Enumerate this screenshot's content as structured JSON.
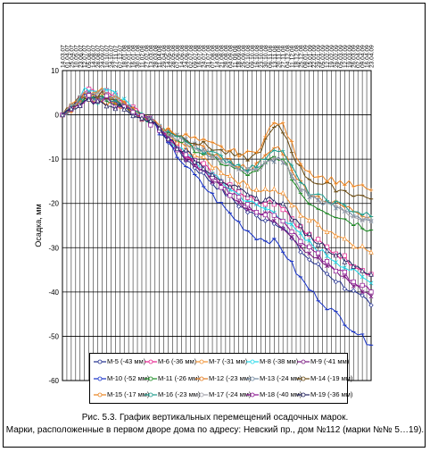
{
  "chart_data": {
    "type": "line",
    "ylabel": "Осадка, мм",
    "ylim": [
      -60,
      10
    ],
    "yticks": [
      10,
      0,
      -10,
      -20,
      -30,
      -40,
      -50,
      -60
    ],
    "x": [
      "14.03.07",
      "01.04.07",
      "25.04.07",
      "10.05.07",
      "23.06.07",
      "12.07.07",
      "05.08.07",
      "14.08.07",
      "28.08.07",
      "24.09.07",
      "10.10.07",
      "24.10.07",
      "27.11.07",
      "07.12.07",
      "18.01.08",
      "22.01.08",
      "16.01.08",
      "30.01.08",
      "11.02.08",
      "27.02.08",
      "13.03.08",
      "28.03.08",
      "11.04.08",
      "29.04.08",
      "14.05.08",
      "28.05.08",
      "07.06.08",
      "14.06.08",
      "24.06.08",
      "02.07.08",
      "09.07.08",
      "16.07.08",
      "24.07.08",
      "31.07.08",
      "07.08.08",
      "14.08.08",
      "21.08.08",
      "28.08.08",
      "04.09.08",
      "11.09.08",
      "18.09.08",
      "25.09.08",
      "02.10.08",
      "09.10.08",
      "16.10.08",
      "23.10.08",
      "30.10.08",
      "06.11.08",
      "13.11.08",
      "20.11.08",
      "27.11.08",
      "04.12.08",
      "11.12.08",
      "18.12.08",
      "25.12.08",
      "08.01.09",
      "15.01.09",
      "22.01.09",
      "29.01.09",
      "05.02.09",
      "12.02.09",
      "19.02.09",
      "26.02.09",
      "05.03.09",
      "12.03.09",
      "19.03.09",
      "26.03.09",
      "02.04.09",
      "09.04.09",
      "16.04.09",
      "23.04.09"
    ],
    "series": [
      {
        "name": "М-5 (-43 мм)",
        "color": "#1f2d8c",
        "marker": "diamond"
      },
      {
        "name": "М-6 (-36 мм)",
        "color": "#e61e8c",
        "marker": "square"
      },
      {
        "name": "М-7 (-31 мм)",
        "color": "#f09030",
        "marker": "triangle"
      },
      {
        "name": "М-8 (-38 мм)",
        "color": "#20d8e8",
        "marker": "x"
      },
      {
        "name": "М-9 (-41 мм)",
        "color": "#7a1a80",
        "marker": "star"
      },
      {
        "name": "М-10 (-52 мм)",
        "color": "#1530c8",
        "marker": "dash"
      },
      {
        "name": "М-11 (-26 мм)",
        "color": "#188a20",
        "marker": "dash"
      },
      {
        "name": "М-12 (-23 мм)",
        "color": "#e07a20",
        "marker": "plus"
      },
      {
        "name": "М-13 (-24 мм)",
        "color": "#7088a0",
        "marker": "x"
      },
      {
        "name": "М-14 (-19 мм)",
        "color": "#6b4a10",
        "marker": "dash"
      },
      {
        "name": "М-15 (-17 мм)",
        "color": "#e8801c",
        "marker": "plus"
      },
      {
        "name": "М-16 (-23 мм)",
        "color": "#1a9a8a",
        "marker": "plus"
      },
      {
        "name": "М-17 (-24 мм)",
        "color": "#a0a0a8",
        "marker": "plus"
      },
      {
        "name": "М-18 (-40 мм)",
        "color": "#8a1090",
        "marker": "square"
      },
      {
        "name": "М-19 (-36 мм)",
        "color": "#202060",
        "marker": "triangle"
      }
    ],
    "endpoints": [
      -43,
      -36,
      -31,
      -38,
      -41,
      -52,
      -26,
      -23,
      -24,
      -19,
      -17,
      -23,
      -24,
      -40,
      -36
    ],
    "grid": true,
    "legend_position": "bottom-left"
  },
  "caption": {
    "line1": "Рис. 5.3. График вертикальных перемещений осадочных марок.",
    "line2": "Марки, расположенные в первом дворе дома по адресу: Невский пр., дом №112 (марки №№ 5…19)."
  }
}
